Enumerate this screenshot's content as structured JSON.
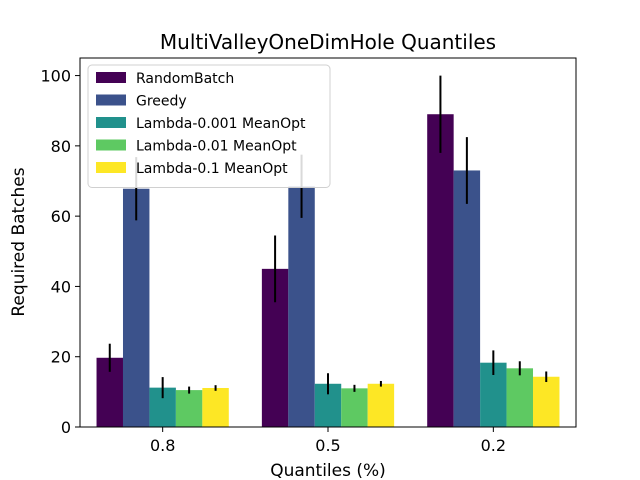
{
  "chart_data": {
    "type": "bar",
    "title": "MultiValleyOneDimHole Quantiles",
    "xlabel": "Quantiles (%)",
    "ylabel": "Required Batches",
    "categories": [
      "0.8",
      "0.5",
      "0.2"
    ],
    "ylim": [
      0,
      105
    ],
    "yticks": [
      0,
      20,
      40,
      60,
      80,
      100
    ],
    "grid": false,
    "legend_position": "top-left",
    "series": [
      {
        "name": "RandomBatch",
        "color": "#440154",
        "values": [
          19.7,
          45.0,
          89.0
        ],
        "errors": [
          4.0,
          9.5,
          11.0
        ]
      },
      {
        "name": "Greedy",
        "color": "#3b528b",
        "values": [
          67.8,
          68.5,
          73.0
        ],
        "errors": [
          9.0,
          9.0,
          9.5
        ]
      },
      {
        "name": "Lambda-0.001 MeanOpt",
        "color": "#21918c",
        "values": [
          11.2,
          12.3,
          18.3
        ],
        "errors": [
          3.0,
          3.0,
          3.5
        ]
      },
      {
        "name": "Lambda-0.01 MeanOpt",
        "color": "#5ec962",
        "values": [
          10.5,
          11.0,
          16.7
        ],
        "errors": [
          1.0,
          1.0,
          2.0
        ]
      },
      {
        "name": "Lambda-0.1 MeanOpt",
        "color": "#fde725",
        "values": [
          11.1,
          12.3,
          14.3
        ],
        "errors": [
          0.8,
          0.8,
          1.5
        ]
      }
    ]
  }
}
